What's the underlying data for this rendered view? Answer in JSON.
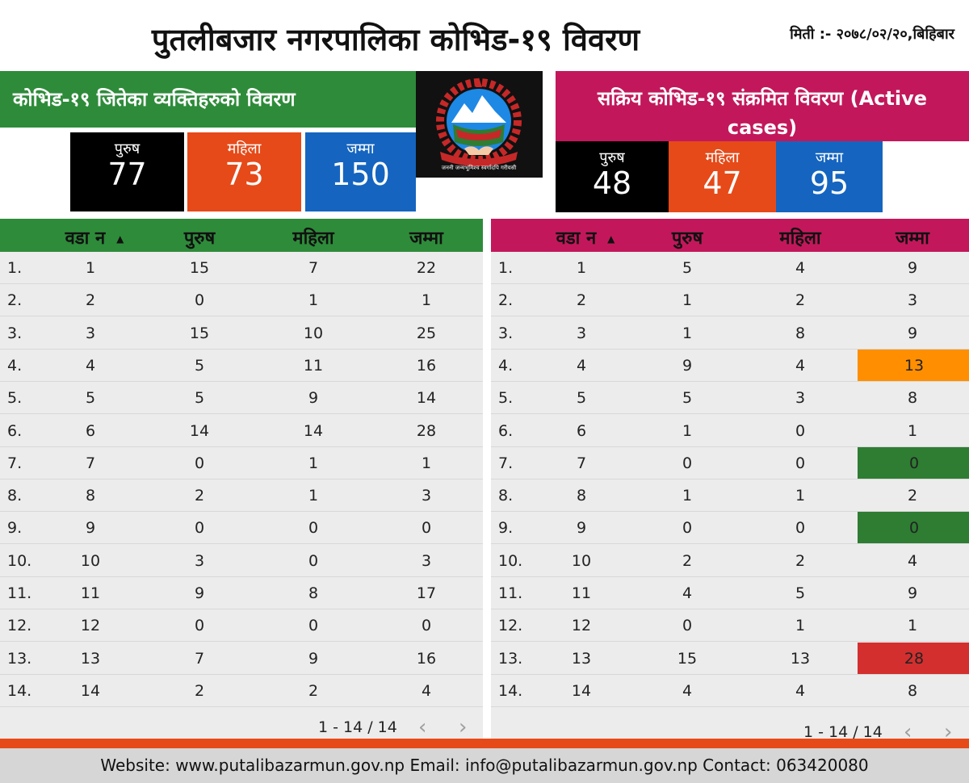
{
  "header": {
    "title": "पुतलीबजार नगरपालिका कोभिड-१९ विवरण",
    "date": "मिती :- २०७८/०२/२०,बिहिबार"
  },
  "recovered": {
    "title": "कोभिड-१९ जितेका व्यक्तिहरुको  विवरण",
    "male_label": "पुरुष",
    "male": "77",
    "female_label": "महिला",
    "female": "73",
    "total_label": "जम्मा",
    "total": "150"
  },
  "active": {
    "title": "सक्रिय  कोभिड-१९ संक्रमित  विवरण (Active cases)",
    "male_label": "पुरुष",
    "male": "48",
    "female_label": "महिला",
    "female": "47",
    "total_label": "जम्मा",
    "total": "95"
  },
  "emblem": {
    "caption": "जननी जन्मभूमिश्च स्वर्गादपि गरीयसी",
    "icon": "nepal-emblem-icon"
  },
  "table_left": {
    "columns": [
      "वडा न",
      "पुरुष",
      "महिला",
      "जम्मा"
    ],
    "rows": [
      {
        "n": "1.",
        "ward": "1",
        "male": "15",
        "female": "7",
        "total": "22"
      },
      {
        "n": "2.",
        "ward": "2",
        "male": "0",
        "female": "1",
        "total": "1"
      },
      {
        "n": "3.",
        "ward": "3",
        "male": "15",
        "female": "10",
        "total": "25"
      },
      {
        "n": "4.",
        "ward": "4",
        "male": "5",
        "female": "11",
        "total": "16"
      },
      {
        "n": "5.",
        "ward": "5",
        "male": "5",
        "female": "9",
        "total": "14"
      },
      {
        "n": "6.",
        "ward": "6",
        "male": "14",
        "female": "14",
        "total": "28"
      },
      {
        "n": "7.",
        "ward": "7",
        "male": "0",
        "female": "1",
        "total": "1"
      },
      {
        "n": "8.",
        "ward": "8",
        "male": "2",
        "female": "1",
        "total": "3"
      },
      {
        "n": "9.",
        "ward": "9",
        "male": "0",
        "female": "0",
        "total": "0"
      },
      {
        "n": "10.",
        "ward": "10",
        "male": "3",
        "female": "0",
        "total": "3"
      },
      {
        "n": "11.",
        "ward": "11",
        "male": "9",
        "female": "8",
        "total": "17"
      },
      {
        "n": "12.",
        "ward": "12",
        "male": "0",
        "female": "0",
        "total": "0"
      },
      {
        "n": "13.",
        "ward": "13",
        "male": "7",
        "female": "9",
        "total": "16"
      },
      {
        "n": "14.",
        "ward": "14",
        "male": "2",
        "female": "2",
        "total": "4"
      }
    ],
    "pager": "1 - 14 / 14"
  },
  "table_right": {
    "columns": [
      "वडा न",
      "पुरुष",
      "महिला",
      "जम्मा"
    ],
    "rows": [
      {
        "n": "1.",
        "ward": "1",
        "male": "5",
        "female": "4",
        "total": "9",
        "hl": ""
      },
      {
        "n": "2.",
        "ward": "2",
        "male": "1",
        "female": "2",
        "total": "3",
        "hl": ""
      },
      {
        "n": "3.",
        "ward": "3",
        "male": "1",
        "female": "8",
        "total": "9",
        "hl": ""
      },
      {
        "n": "4.",
        "ward": "4",
        "male": "9",
        "female": "4",
        "total": "13",
        "hl": "#ff8f00"
      },
      {
        "n": "5.",
        "ward": "5",
        "male": "5",
        "female": "3",
        "total": "8",
        "hl": ""
      },
      {
        "n": "6.",
        "ward": "6",
        "male": "1",
        "female": "0",
        "total": "1",
        "hl": ""
      },
      {
        "n": "7.",
        "ward": "7",
        "male": "0",
        "female": "0",
        "total": "0",
        "hl": "#2e7d32"
      },
      {
        "n": "8.",
        "ward": "8",
        "male": "1",
        "female": "1",
        "total": "2",
        "hl": ""
      },
      {
        "n": "9.",
        "ward": "9",
        "male": "0",
        "female": "0",
        "total": "0",
        "hl": "#2e7d32"
      },
      {
        "n": "10.",
        "ward": "10",
        "male": "2",
        "female": "2",
        "total": "4",
        "hl": ""
      },
      {
        "n": "11.",
        "ward": "11",
        "male": "4",
        "female": "5",
        "total": "9",
        "hl": ""
      },
      {
        "n": "12.",
        "ward": "12",
        "male": "0",
        "female": "1",
        "total": "1",
        "hl": ""
      },
      {
        "n": "13.",
        "ward": "13",
        "male": "15",
        "female": "13",
        "total": "28",
        "hl": "#d32f2f"
      },
      {
        "n": "14.",
        "ward": "14",
        "male": "4",
        "female": "4",
        "total": "8",
        "hl": ""
      }
    ],
    "pager": "1 - 14 / 14"
  },
  "footer": {
    "text": "Website: www.putalibazarmun.gov.np Email: info@putalibazarmun.gov.np  Contact: 063420080"
  },
  "colors": {
    "green": "#2e8b3a",
    "magenta": "#c2185b",
    "orange": "#e64a19",
    "blue": "#1565c0",
    "black": "#000000"
  }
}
